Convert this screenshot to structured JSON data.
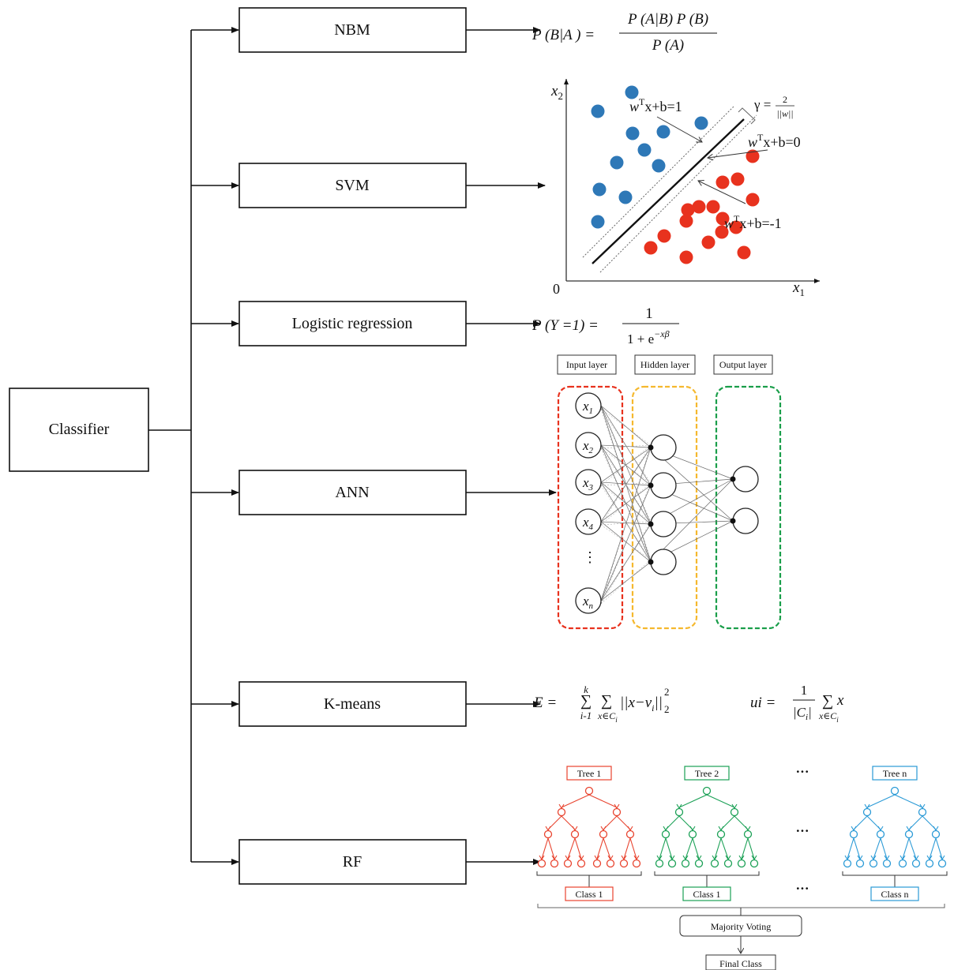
{
  "root": {
    "label": "Classifier"
  },
  "branches": [
    {
      "id": "nbm",
      "label": "NBM"
    },
    {
      "id": "svm",
      "label": "SVM"
    },
    {
      "id": "lr",
      "label": "Logistic regression"
    },
    {
      "id": "ann",
      "label": "ANN"
    },
    {
      "id": "kmeans",
      "label": "K-means"
    },
    {
      "id": "rf",
      "label": "RF"
    }
  ],
  "nbm_formula": {
    "lhs": "P (B|A ) =",
    "numerator": "P (A|B) P (B)",
    "denominator": "P (A)"
  },
  "svm": {
    "x_axis": "x",
    "x_sub": "1",
    "y_axis": "x",
    "y_sub": "2",
    "origin": "0",
    "margin_eq": "w",
    "hyperplane_pos": "x+b=1",
    "hyperplane_zero": "x+b=0",
    "hyperplane_neg": "x+b=-1",
    "transpose": "T",
    "gamma": "γ =",
    "gamma_num": "2",
    "gamma_den": "||w||",
    "colors": {
      "class_a": "#2e78b7",
      "class_b": "#e8321e"
    }
  },
  "logistic_formula": {
    "lhs": "P (Y =1) =",
    "numerator": "1",
    "denominator_base": "1 + e",
    "denominator_exp": "−xβ"
  },
  "ann": {
    "input_label": "Input layer",
    "hidden_label": "Hidden layer",
    "output_label": "Output layer",
    "inputs": [
      {
        "base": "x",
        "sub": "1"
      },
      {
        "base": "x",
        "sub": "2"
      },
      {
        "base": "x",
        "sub": "3"
      },
      {
        "base": "x",
        "sub": "4"
      },
      {
        "base": "x",
        "sub": "n"
      }
    ],
    "ellipsis": "⋮",
    "colors": {
      "input": "#e8321e",
      "hidden": "#f5b82e",
      "output": "#1a9e4a"
    }
  },
  "kmeans_formulas": {
    "e_lhs": "E =",
    "e_sum_top": "k",
    "e_sum_bottom": "i-1",
    "e_inner_bottom": "x∈C",
    "e_inner_sub": "i",
    "e_body": "||x−v",
    "e_body_sub": "i",
    "e_body_end": "||",
    "e_exp": "2",
    "e_norm_sub": "2",
    "u_lhs": "ui =",
    "u_num": "1",
    "u_den": "|C",
    "u_den_sub": "i",
    "u_den_end": "|",
    "u_sum_bottom": "x∈C",
    "u_sum_sub": "i",
    "u_body": "x"
  },
  "rf": {
    "trees": [
      {
        "label": "Tree 1",
        "class": "Class 1",
        "color": "#e8432e"
      },
      {
        "label": "Tree 2",
        "class": "Class 1",
        "color": "#1aa055"
      },
      {
        "label": "Tree n",
        "class": "Class n",
        "color": "#2a9ad6"
      }
    ],
    "ellipsis": "···",
    "voting": "Majority Voting",
    "final": "Final Class"
  }
}
